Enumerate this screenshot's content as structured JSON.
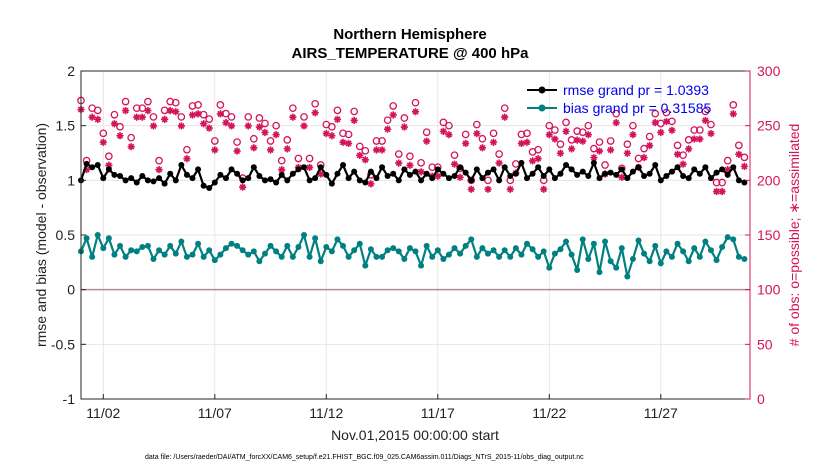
{
  "chart_data": {
    "type": "line",
    "title": "Northern Hemisphere",
    "subtitle": "AIRS_TEMPERATURE @ 400 hPa",
    "xlabel": "Nov.01,2015 00:00:00 start",
    "ylabel": "rmse and bias (model - observation)",
    "y2label": "# of obs: o=possible; ∗=assimilated",
    "footnote": "data file: /Users/raeder/DAI/ATM_forcXX/CAM6_setup/f.e21.FHIST_BGC.f09_025.CAM6assim.011/Diags_NTrS_2015-11/obs_diag_output.nc",
    "xlim": [
      0,
      30
    ],
    "ylim": [
      -1,
      2
    ],
    "y2lim": [
      0,
      300
    ],
    "xticks": [
      1,
      6,
      11,
      16,
      21,
      26
    ],
    "xticklabels": [
      "11/02",
      "11/07",
      "11/12",
      "11/17",
      "11/22",
      "11/27"
    ],
    "yticks": [
      -1,
      -0.5,
      0,
      0.5,
      1,
      1.5,
      2
    ],
    "yticklabels": [
      "-1",
      "-0.5",
      "0",
      "0.5",
      "1",
      "1.5",
      "2"
    ],
    "y2ticks": [
      0,
      50,
      100,
      150,
      200,
      250,
      300
    ],
    "y2ticklabels": [
      "0",
      "50",
      "100",
      "150",
      "200",
      "250",
      "300"
    ],
    "colors": {
      "rmse": "#000000",
      "bias": "#008080",
      "obs": "#d4145a",
      "legend_text": "#0000ee",
      "zero_line": "#b08c8c"
    },
    "legend": [
      {
        "name": "rmse",
        "label": "rmse grand pr = 1.0393"
      },
      {
        "name": "bias",
        "label": "bias grand pr = 0.31585"
      }
    ],
    "x": [
      0.0,
      0.25,
      0.5,
      0.75,
      1.0,
      1.25,
      1.5,
      1.75,
      2.0,
      2.25,
      2.5,
      2.75,
      3.0,
      3.25,
      3.5,
      3.75,
      4.0,
      4.25,
      4.5,
      4.75,
      5.0,
      5.25,
      5.5,
      5.75,
      6.0,
      6.25,
      6.5,
      6.75,
      7.0,
      7.25,
      7.5,
      7.75,
      8.0,
      8.25,
      8.5,
      8.75,
      9.0,
      9.25,
      9.5,
      9.75,
      10.0,
      10.25,
      10.5,
      10.75,
      11.0,
      11.25,
      11.5,
      11.75,
      12.0,
      12.25,
      12.5,
      12.75,
      13.0,
      13.25,
      13.5,
      13.75,
      14.0,
      14.25,
      14.5,
      14.75,
      15.0,
      15.25,
      15.5,
      15.75,
      16.0,
      16.25,
      16.5,
      16.75,
      17.0,
      17.25,
      17.5,
      17.75,
      18.0,
      18.25,
      18.5,
      18.75,
      19.0,
      19.25,
      19.5,
      19.75,
      20.0,
      20.25,
      20.5,
      20.75,
      21.0,
      21.25,
      21.5,
      21.75,
      22.0,
      22.25,
      22.5,
      22.75,
      23.0,
      23.25,
      23.5,
      23.75,
      24.0,
      24.25,
      24.5,
      24.75,
      25.0,
      25.25,
      25.5,
      25.75,
      26.0,
      26.25,
      26.5,
      26.75,
      27.0,
      27.25,
      27.5,
      27.75,
      28.0,
      28.25,
      28.5,
      28.75,
      29.0,
      29.25,
      29.5,
      29.75
    ],
    "rmse": [
      1.0,
      1.15,
      1.12,
      1.14,
      1.02,
      1.1,
      1.05,
      1.04,
      1.0,
      1.02,
      0.98,
      1.04,
      1.0,
      0.99,
      1.02,
      0.97,
      1.06,
      1.0,
      1.14,
      1.05,
      1.02,
      1.1,
      0.95,
      0.93,
      0.98,
      1.05,
      1.02,
      1.1,
      1.06,
      1.0,
      1.02,
      1.12,
      1.04,
      1.0,
      1.01,
      0.98,
      1.05,
      1.0,
      1.06,
      1.1,
      1.12,
      1.0,
      1.02,
      1.12,
      1.05,
      0.97,
      1.06,
      1.14,
      1.02,
      1.08,
      1.0,
      0.98,
      1.08,
      1.02,
      1.12,
      1.04,
      1.06,
      1.0,
      1.1,
      1.05,
      1.08,
      1.0,
      1.06,
      1.02,
      1.1,
      1.06,
      1.02,
      1.04,
      1.12,
      1.07,
      1.0,
      1.1,
      1.02,
      1.07,
      1.1,
      1.0,
      1.12,
      1.04,
      1.06,
      1.16,
      1.02,
      1.06,
      1.12,
      1.04,
      1.1,
      1.02,
      1.06,
      1.14,
      1.1,
      1.05,
      1.08,
      1.04,
      1.16,
      1.02,
      1.06,
      1.07,
      1.05,
      1.1,
      1.02,
      1.08,
      1.12,
      1.04,
      1.06,
      1.14,
      1.0,
      1.04,
      1.08,
      1.12,
      1.04,
      1.02,
      1.1,
      1.06,
      1.12,
      1.02,
      1.07,
      1.1,
      1.05,
      1.12,
      1.0,
      0.98
    ],
    "bias": [
      0.35,
      0.47,
      0.3,
      0.5,
      0.38,
      0.47,
      0.32,
      0.4,
      0.3,
      0.36,
      0.35,
      0.39,
      0.4,
      0.28,
      0.36,
      0.32,
      0.4,
      0.33,
      0.44,
      0.3,
      0.32,
      0.42,
      0.3,
      0.36,
      0.27,
      0.32,
      0.38,
      0.42,
      0.4,
      0.36,
      0.32,
      0.35,
      0.26,
      0.33,
      0.4,
      0.35,
      0.3,
      0.4,
      0.3,
      0.39,
      0.5,
      0.3,
      0.47,
      0.26,
      0.39,
      0.35,
      0.46,
      0.4,
      0.3,
      0.36,
      0.42,
      0.22,
      0.37,
      0.3,
      0.3,
      0.36,
      0.38,
      0.35,
      0.28,
      0.38,
      0.35,
      0.22,
      0.4,
      0.3,
      0.36,
      0.28,
      0.32,
      0.38,
      0.33,
      0.4,
      0.46,
      0.3,
      0.38,
      0.33,
      0.36,
      0.3,
      0.36,
      0.3,
      0.38,
      0.32,
      0.42,
      0.37,
      0.3,
      0.35,
      0.2,
      0.33,
      0.37,
      0.44,
      0.32,
      0.18,
      0.46,
      0.28,
      0.42,
      0.16,
      0.44,
      0.26,
      0.2,
      0.38,
      0.12,
      0.28,
      0.45,
      0.33,
      0.26,
      0.4,
      0.24,
      0.35,
      0.3,
      0.42,
      0.35,
      0.26,
      0.38,
      0.3,
      0.44,
      0.36,
      0.27,
      0.39,
      0.48,
      0.46,
      0.3,
      0.28
    ],
    "obs_possible": [
      273,
      218,
      266,
      264,
      243,
      222,
      260,
      249,
      272,
      239,
      266,
      266,
      272,
      258,
      218,
      264,
      272,
      271,
      258,
      228,
      268,
      269,
      260,
      256,
      236,
      269,
      261,
      258,
      235,
      202,
      258,
      238,
      257,
      252,
      236,
      250,
      218,
      237,
      266,
      220,
      258,
      220,
      270,
      214,
      251,
      249,
      264,
      243,
      242,
      263,
      231,
      227,
      205,
      236,
      236,
      255,
      268,
      224,
      257,
      222,
      271,
      216,
      244,
      212,
      212,
      253,
      250,
      223,
      211,
      242,
      200,
      251,
      238,
      200,
      243,
      224,
      266,
      200,
      215,
      242,
      243,
      226,
      228,
      200,
      250,
      246,
      233,
      253,
      237,
      245,
      244,
      250,
      229,
      235,
      214,
      236,
      261,
      211,
      233,
      250,
      220,
      229,
      240,
      261,
      252,
      262,
      254,
      232,
      223,
      237,
      246,
      246,
      263,
      251,
      198,
      198,
      218,
      269,
      232,
      221
    ],
    "obs_assimilated": [
      273,
      218,
      266,
      264,
      243,
      222,
      260,
      249,
      272,
      239,
      266,
      266,
      272,
      258,
      218,
      264,
      272,
      271,
      258,
      228,
      268,
      269,
      260,
      256,
      236,
      269,
      261,
      258,
      235,
      202,
      258,
      238,
      257,
      252,
      236,
      250,
      218,
      237,
      266,
      220,
      258,
      220,
      270,
      214,
      251,
      249,
      264,
      243,
      242,
      263,
      231,
      227,
      205,
      236,
      236,
      255,
      268,
      224,
      257,
      222,
      271,
      216,
      244,
      212,
      212,
      253,
      250,
      223,
      211,
      242,
      200,
      251,
      238,
      200,
      243,
      224,
      266,
      200,
      215,
      242,
      243,
      226,
      228,
      200,
      250,
      246,
      233,
      253,
      237,
      245,
      244,
      250,
      229,
      235,
      214,
      236,
      261,
      211,
      233,
      250,
      220,
      229,
      240,
      261,
      252,
      262,
      254,
      232,
      223,
      237,
      246,
      246,
      263,
      251,
      198,
      198,
      218,
      269,
      232,
      221
    ]
  }
}
